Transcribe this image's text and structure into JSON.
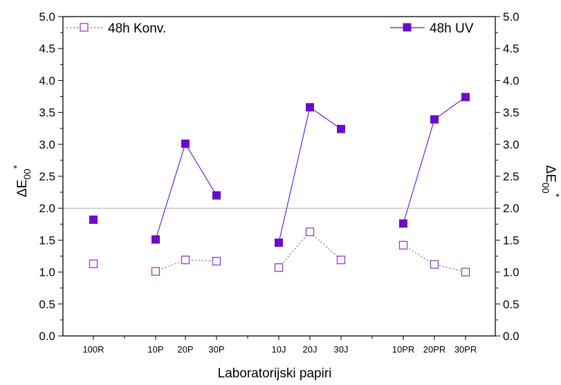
{
  "chart_data": {
    "type": "line",
    "title": "",
    "xlabel": "Laboratorijski papiri",
    "ylabel": "ΔE",
    "ylabel_sub": "00",
    "ylabel_sup": "*",
    "ylabel_right": "ΔE",
    "ylabel_right_sub": "00",
    "ylabel_right_sup": "*",
    "ylim": [
      0,
      5
    ],
    "yticks": [
      "0.0",
      "0.5",
      "1.0",
      "1.5",
      "2.0",
      "2.5",
      "3.0",
      "3.5",
      "4.0",
      "4.5",
      "5.0"
    ],
    "reference_line": 2.0,
    "grid": false,
    "legend_left": "top-left",
    "legend_right": "top-right",
    "categories": [
      "100R",
      "10P",
      "20P",
      "30P",
      "10J",
      "20J",
      "30J",
      "10PR",
      "20PR",
      "30PR"
    ],
    "groups": [
      [
        0
      ],
      [
        1,
        2,
        3
      ],
      [
        4,
        5,
        6
      ],
      [
        7,
        8,
        9
      ]
    ],
    "series": [
      {
        "name": "48h Konv.",
        "color": "#8a3fc0",
        "marker": "open-square",
        "line": "dotted",
        "values": [
          1.13,
          1.01,
          1.19,
          1.17,
          1.07,
          1.63,
          1.19,
          1.42,
          1.12,
          1.0
        ]
      },
      {
        "name": "48h UV",
        "color": "#6a0dc8",
        "marker": "filled-square",
        "line": "solid",
        "values": [
          1.82,
          1.51,
          3.01,
          2.2,
          1.46,
          3.58,
          3.24,
          1.76,
          3.39,
          3.74
        ]
      }
    ]
  }
}
